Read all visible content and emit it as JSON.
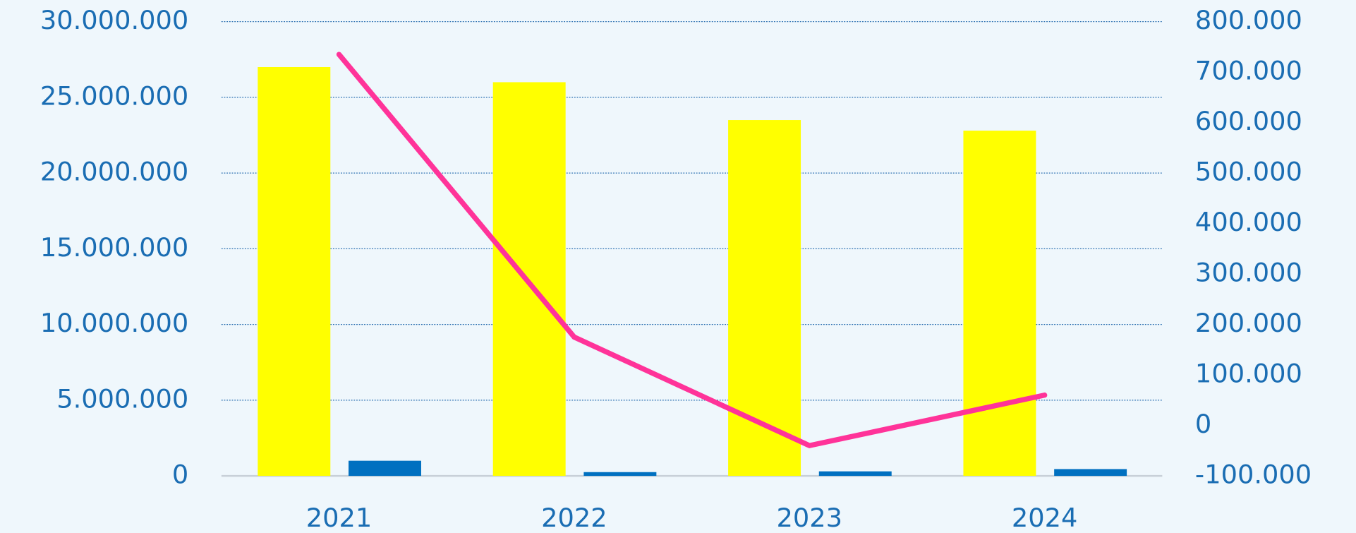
{
  "chart_data": {
    "type": "bar-line",
    "categories": [
      "2021",
      "2022",
      "2023",
      "2024"
    ],
    "series": [
      {
        "type": "bar",
        "color": "#ffff00",
        "values": [
          27000000,
          26000000,
          23500000,
          22800000
        ]
      },
      {
        "type": "bar",
        "color": "#0070c0",
        "values": [
          1000000,
          250000,
          300000,
          450000
        ]
      },
      {
        "type": "line",
        "axis": "y2",
        "color": "#ff3399",
        "values": [
          735000,
          175000,
          -40000,
          60000
        ]
      }
    ],
    "ylim": [
      0,
      30000000
    ],
    "yticks": [
      0,
      {
        "value": 5000000,
        "label": "5.000.000"
      },
      {
        "value": 10000000,
        "label": "10.000.000"
      },
      {
        "value": 15000000,
        "label": "15.000.000"
      },
      {
        "value": 20000000,
        "label": "20.000.000"
      },
      {
        "value": 25000000,
        "label": "25.000.000"
      },
      {
        "value": 30000000,
        "label": "30.000.000"
      }
    ],
    "y2lim": [
      -100000,
      800000
    ],
    "y2ticks": [
      {
        "value": -100000,
        "label": "-100.000"
      },
      0,
      {
        "value": 100000,
        "label": "100.000"
      },
      {
        "value": 200000,
        "label": "200.000"
      },
      {
        "value": 300000,
        "label": "300.000"
      },
      {
        "value": 400000,
        "label": "400.000"
      },
      {
        "value": 500000,
        "label": "500.000"
      },
      {
        "value": 600000,
        "label": "600.000"
      },
      {
        "value": 700000,
        "label": "700.000"
      },
      {
        "value": 800000,
        "label": "800.000"
      }
    ],
    "grid": true
  }
}
